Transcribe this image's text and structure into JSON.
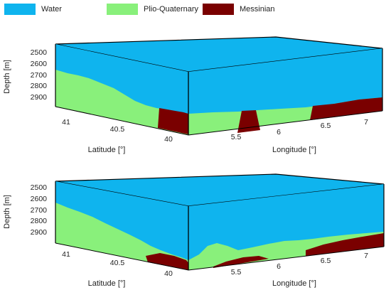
{
  "legend": [
    {
      "label": "Water",
      "color": "#0FB4EE"
    },
    {
      "label": "Plio-Quaternary",
      "color": "#89F07B"
    },
    {
      "label": "Messinian",
      "color": "#7A0000"
    }
  ],
  "axes": {
    "depth_label": "Depth [m]",
    "latitude_label": "Latitude [°]",
    "longitude_label": "Longitude [°]",
    "depth_ticks": [
      "2500",
      "2600",
      "2700",
      "2800",
      "2900"
    ],
    "latitude_ticks": [
      "41",
      "40.5",
      "40"
    ],
    "longitude_ticks": [
      "5.5",
      "6",
      "6.5",
      "7"
    ]
  },
  "panels": [
    {
      "name": "top"
    },
    {
      "name": "bottom"
    }
  ]
}
